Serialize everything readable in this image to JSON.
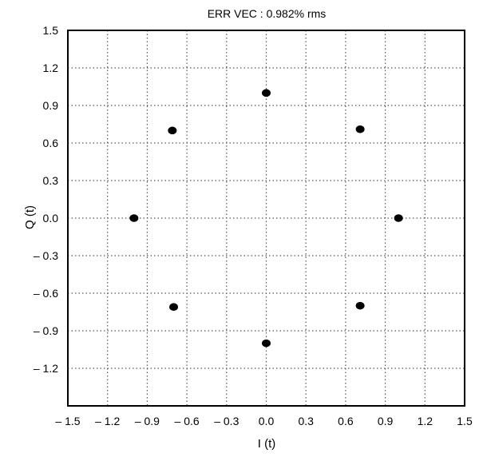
{
  "chart_data": {
    "type": "scatter",
    "title": "ERR VEC : 0.982% rms",
    "xlabel": "I (t)",
    "ylabel": "Q (t)",
    "xlim": [
      -1.5,
      1.5
    ],
    "ylim": [
      -1.5,
      1.5
    ],
    "x_ticks": [
      -1.5,
      -1.2,
      -0.9,
      -0.6,
      -0.3,
      0.0,
      0.3,
      0.6,
      0.9,
      1.2,
      1.5
    ],
    "x_tick_labels": [
      "– 1.5",
      "– 1.2",
      "– 0.9",
      "– 0.6",
      "– 0.3",
      "0.0",
      "0.3",
      "0.6",
      "0.9",
      "1.2",
      "1.5"
    ],
    "y_ticks": [
      1.5,
      1.2,
      0.9,
      0.6,
      0.3,
      0.0,
      -0.3,
      -0.6,
      -0.9,
      -1.2
    ],
    "y_tick_labels": [
      "1.5",
      "1.2",
      "0.9",
      "0.6",
      "0.3",
      "0.0",
      "– 0.3",
      "– 0.6",
      "– 0.9",
      "– 1.2"
    ],
    "grid": true,
    "grid_style": "dotted",
    "colors": {
      "points": "#000000",
      "grid": "#555555",
      "frame": "#000000",
      "background": "#ffffff"
    },
    "points": [
      {
        "x": 0.0,
        "y": 1.0
      },
      {
        "x": 0.71,
        "y": 0.71
      },
      {
        "x": 1.0,
        "y": 0.0
      },
      {
        "x": 0.71,
        "y": -0.7
      },
      {
        "x": 0.0,
        "y": -1.0
      },
      {
        "x": -0.7,
        "y": -0.71
      },
      {
        "x": -1.0,
        "y": 0.0
      },
      {
        "x": -0.71,
        "y": 0.7
      }
    ]
  }
}
